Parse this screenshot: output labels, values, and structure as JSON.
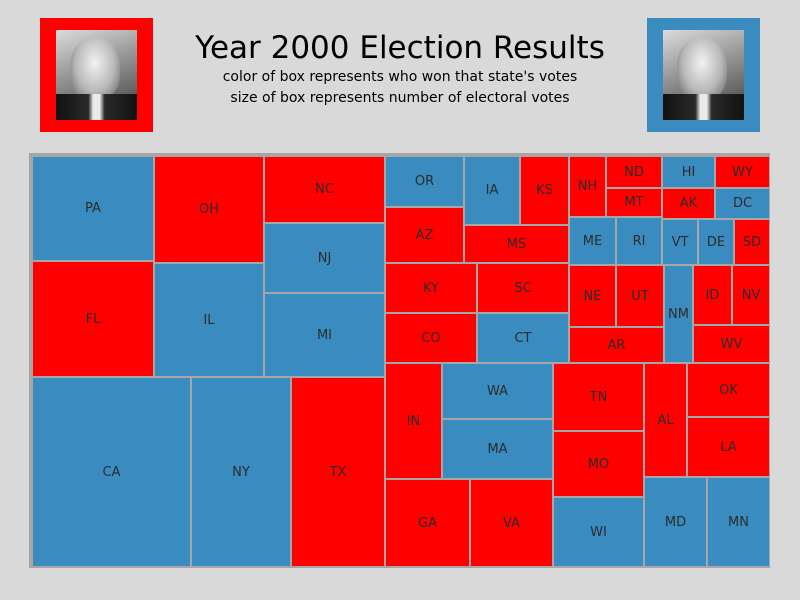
{
  "title": "Year 2000 Election Results",
  "subtitle_lines": [
    "color of box represents who won that state's votes",
    "size of box represents number of electoral votes"
  ],
  "colors": {
    "red": "#ff0000",
    "blue": "#3a8cc0",
    "border": "#a6a6a6"
  },
  "chart_data": {
    "type": "treemap",
    "title": "Year 2000 Election Results",
    "subtitle": [
      "color of box represents who won that state's votes",
      "size of box represents number of electoral votes"
    ],
    "items": [
      {
        "state": "PA",
        "color": "blue"
      },
      {
        "state": "OH",
        "color": "red"
      },
      {
        "state": "NC",
        "color": "red"
      },
      {
        "state": "NJ",
        "color": "blue"
      },
      {
        "state": "MI",
        "color": "blue"
      },
      {
        "state": "FL",
        "color": "red"
      },
      {
        "state": "IL",
        "color": "blue"
      },
      {
        "state": "CA",
        "color": "blue"
      },
      {
        "state": "NY",
        "color": "blue"
      },
      {
        "state": "TX",
        "color": "red"
      },
      {
        "state": "OR",
        "color": "blue"
      },
      {
        "state": "IA",
        "color": "blue"
      },
      {
        "state": "KS",
        "color": "red"
      },
      {
        "state": "AZ",
        "color": "red"
      },
      {
        "state": "MS",
        "color": "red"
      },
      {
        "state": "KY",
        "color": "red"
      },
      {
        "state": "SC",
        "color": "red"
      },
      {
        "state": "CO",
        "color": "red"
      },
      {
        "state": "CT",
        "color": "blue"
      },
      {
        "state": "IN",
        "color": "red"
      },
      {
        "state": "WA",
        "color": "blue"
      },
      {
        "state": "MA",
        "color": "blue"
      },
      {
        "state": "GA",
        "color": "red"
      },
      {
        "state": "VA",
        "color": "red"
      },
      {
        "state": "NH",
        "color": "red"
      },
      {
        "state": "ND",
        "color": "red"
      },
      {
        "state": "HI",
        "color": "blue"
      },
      {
        "state": "WY",
        "color": "red"
      },
      {
        "state": "MT",
        "color": "red"
      },
      {
        "state": "AK",
        "color": "red"
      },
      {
        "state": "DC",
        "color": "blue"
      },
      {
        "state": "ME",
        "color": "blue"
      },
      {
        "state": "RI",
        "color": "blue"
      },
      {
        "state": "VT",
        "color": "blue"
      },
      {
        "state": "DE",
        "color": "blue"
      },
      {
        "state": "SD",
        "color": "red"
      },
      {
        "state": "NE",
        "color": "red"
      },
      {
        "state": "UT",
        "color": "red"
      },
      {
        "state": "NM",
        "color": "blue"
      },
      {
        "state": "ID",
        "color": "red"
      },
      {
        "state": "NV",
        "color": "red"
      },
      {
        "state": "AR",
        "color": "red"
      },
      {
        "state": "WV",
        "color": "red"
      },
      {
        "state": "TN",
        "color": "red"
      },
      {
        "state": "AL",
        "color": "red"
      },
      {
        "state": "OK",
        "color": "red"
      },
      {
        "state": "LA",
        "color": "red"
      },
      {
        "state": "MO",
        "color": "red"
      },
      {
        "state": "WI",
        "color": "blue"
      },
      {
        "state": "MD",
        "color": "blue"
      },
      {
        "state": "MN",
        "color": "blue"
      }
    ]
  }
}
